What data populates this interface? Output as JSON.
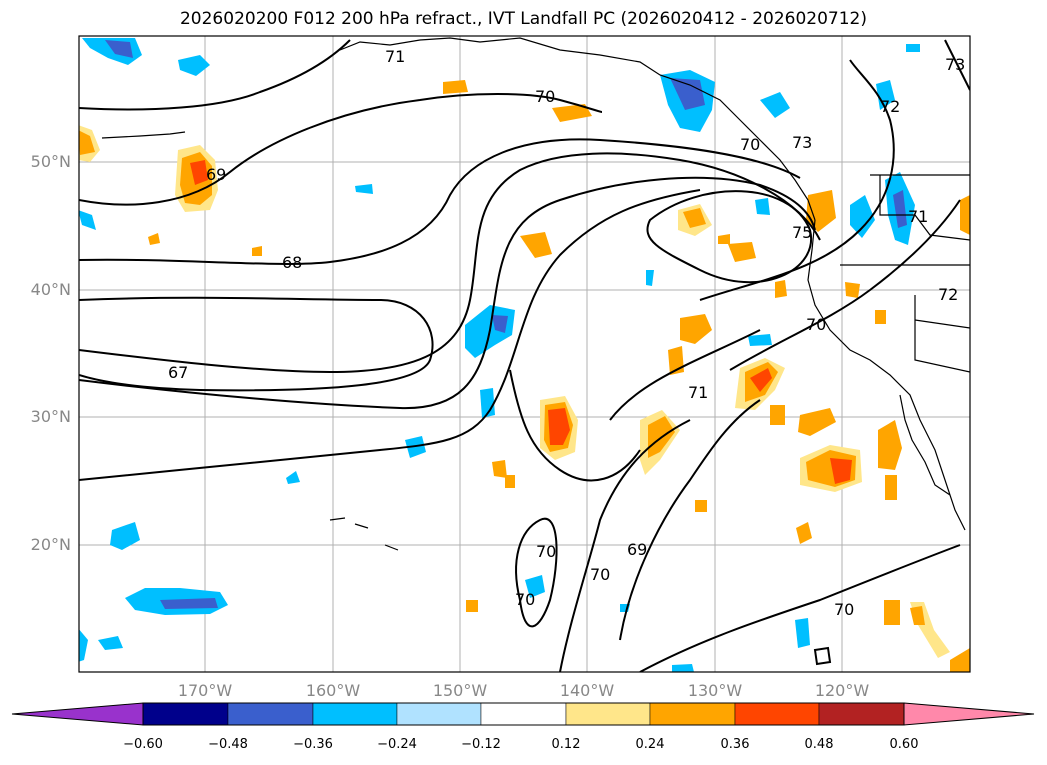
{
  "title": "2026020200 F012 200 hPa refract., IVT Landfall PC (2026020412 - 2026020712)",
  "lat_labels": [
    "50°N",
    "40°N",
    "30°N",
    "20°N"
  ],
  "lon_labels": [
    "170°W",
    "160°W",
    "150°W",
    "140°W",
    "130°W",
    "120°W"
  ],
  "colorbar": {
    "ticks": [
      "−0.60",
      "−0.48",
      "−0.36",
      "−0.24",
      "−0.12",
      "0.12",
      "0.24",
      "0.36",
      "0.48",
      "0.60"
    ],
    "colors": [
      "#9932cc",
      "#00008b",
      "#3a5fcd",
      "#00bfff",
      "#b0e2ff",
      "#ffffff",
      "#ffe68a",
      "#ffa500",
      "#ff4500",
      "#b22222",
      "#ff88aa"
    ]
  },
  "contour_labels": [
    "71",
    "70",
    "69",
    "68",
    "67",
    "75",
    "73",
    "72",
    "70",
    "71",
    "72",
    "70",
    "70",
    "69",
    "70",
    "70",
    "71",
    "73"
  ]
}
